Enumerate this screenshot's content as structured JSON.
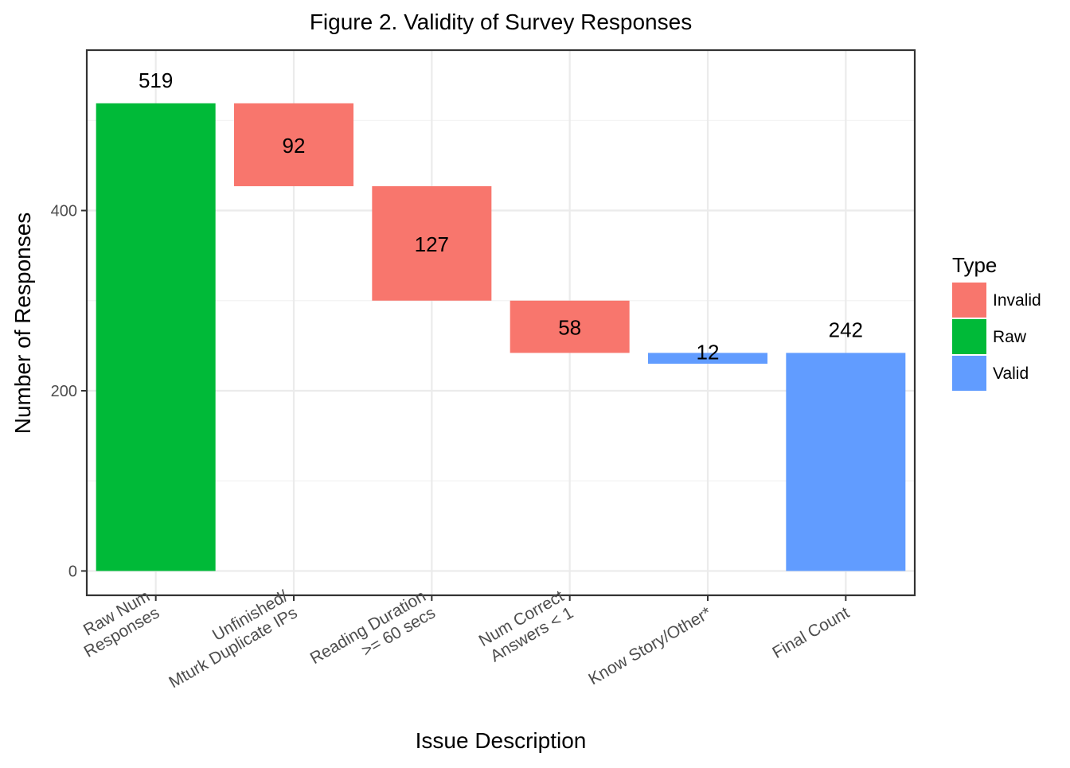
{
  "chart_data": {
    "type": "bar",
    "subtype": "waterfall",
    "title": "Figure 2. Validity of Survey Responses",
    "xlabel": "Issue Description",
    "ylabel": "Number of Responses",
    "ylim": [
      -27,
      578
    ],
    "yticks": [
      0,
      200,
      400
    ],
    "grid": true,
    "legend": {
      "title": "Type",
      "position": "right",
      "entries": [
        {
          "label": "Invalid",
          "color": "#F8766D"
        },
        {
          "label": "Raw",
          "color": "#00BA38"
        },
        {
          "label": "Valid",
          "color": "#619CFF"
        }
      ]
    },
    "categories": [
      [
        "Raw Num",
        "Responses"
      ],
      [
        "Unfinished/",
        "Mturk Duplicate IPs"
      ],
      [
        "Reading Duration",
        ">= 60 secs"
      ],
      [
        "Num Correct",
        "Answers < 1"
      ],
      [
        "Know Story/Other*"
      ],
      [
        "Final Count"
      ]
    ],
    "bars": [
      {
        "start": 0,
        "end": 519,
        "value": 519,
        "type": "Raw"
      },
      {
        "start": 427,
        "end": 519,
        "value": 92,
        "type": "Invalid"
      },
      {
        "start": 300,
        "end": 427,
        "value": 127,
        "type": "Invalid"
      },
      {
        "start": 242,
        "end": 300,
        "value": 58,
        "type": "Invalid"
      },
      {
        "start": 230,
        "end": 242,
        "value": 12,
        "type": "Valid"
      },
      {
        "start": 0,
        "end": 242,
        "value": 242,
        "type": "Valid"
      }
    ],
    "data_labels": [
      "519",
      "92",
      "127",
      "58",
      "12",
      "242"
    ]
  }
}
